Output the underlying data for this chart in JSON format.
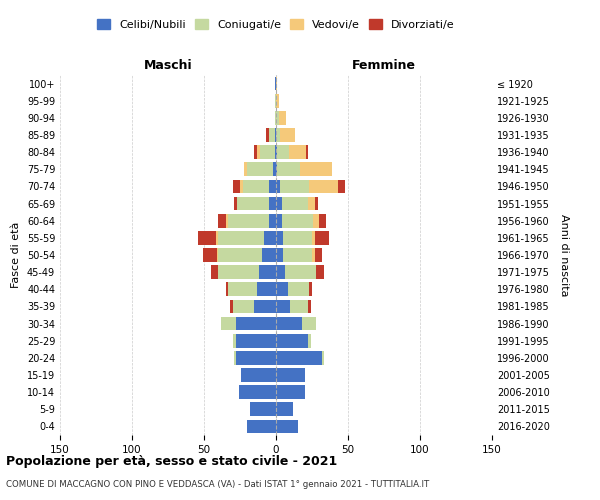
{
  "age_groups": [
    "0-4",
    "5-9",
    "10-14",
    "15-19",
    "20-24",
    "25-29",
    "30-34",
    "35-39",
    "40-44",
    "45-49",
    "50-54",
    "55-59",
    "60-64",
    "65-69",
    "70-74",
    "75-79",
    "80-84",
    "85-89",
    "90-94",
    "95-99",
    "100+"
  ],
  "birth_years": [
    "2016-2020",
    "2011-2015",
    "2006-2010",
    "2001-2005",
    "1996-2000",
    "1991-1995",
    "1986-1990",
    "1981-1985",
    "1976-1980",
    "1971-1975",
    "1966-1970",
    "1961-1965",
    "1956-1960",
    "1951-1955",
    "1946-1950",
    "1941-1945",
    "1936-1940",
    "1931-1935",
    "1926-1930",
    "1921-1925",
    "≤ 1920"
  ],
  "colors": {
    "celibe": "#4472C4",
    "coniugato": "#C5D9A0",
    "vedovo": "#F5C97A",
    "divorziato": "#C0392B"
  },
  "maschi": {
    "celibe": [
      20,
      18,
      26,
      24,
      28,
      28,
      28,
      15,
      13,
      12,
      10,
      8,
      5,
      5,
      5,
      2,
      1,
      1,
      0,
      0,
      1
    ],
    "coniugato": [
      0,
      0,
      0,
      0,
      1,
      2,
      10,
      15,
      20,
      28,
      30,
      32,
      28,
      22,
      18,
      18,
      10,
      4,
      1,
      1,
      0
    ],
    "vedovo": [
      0,
      0,
      0,
      0,
      0,
      0,
      0,
      0,
      0,
      0,
      1,
      2,
      2,
      0,
      2,
      2,
      2,
      0,
      0,
      0,
      0
    ],
    "divorziato": [
      0,
      0,
      0,
      0,
      0,
      0,
      0,
      2,
      2,
      5,
      10,
      12,
      5,
      2,
      5,
      0,
      2,
      2,
      0,
      0,
      0
    ]
  },
  "femmine": {
    "nubile": [
      15,
      12,
      20,
      20,
      32,
      22,
      18,
      10,
      8,
      6,
      5,
      5,
      4,
      4,
      3,
      1,
      1,
      0,
      0,
      0,
      0
    ],
    "coniugata": [
      0,
      0,
      0,
      0,
      1,
      2,
      10,
      12,
      15,
      22,
      20,
      20,
      22,
      18,
      20,
      16,
      8,
      3,
      2,
      0,
      0
    ],
    "vedova": [
      0,
      0,
      0,
      0,
      0,
      0,
      0,
      0,
      0,
      0,
      2,
      2,
      4,
      5,
      20,
      22,
      12,
      10,
      5,
      2,
      1
    ],
    "divorziata": [
      0,
      0,
      0,
      0,
      0,
      0,
      0,
      2,
      2,
      5,
      5,
      10,
      5,
      2,
      5,
      0,
      1,
      0,
      0,
      0,
      0
    ]
  },
  "xlim": 150,
  "title_main": "Popolazione per età, sesso e stato civile - 2021",
  "title_sub": "COMUNE DI MACCAGNO CON PINO E VEDDASCA (VA) - Dati ISTAT 1° gennaio 2021 - TUTTITALIA.IT",
  "ylabel_left": "Fasce di età",
  "ylabel_right": "Anni di nascita",
  "legend_labels": [
    "Celibi/Nubili",
    "Coniugati/e",
    "Vedovi/e",
    "Divorziati/e"
  ],
  "background_color": "#FFFFFF",
  "grid_color": "#CCCCCC"
}
